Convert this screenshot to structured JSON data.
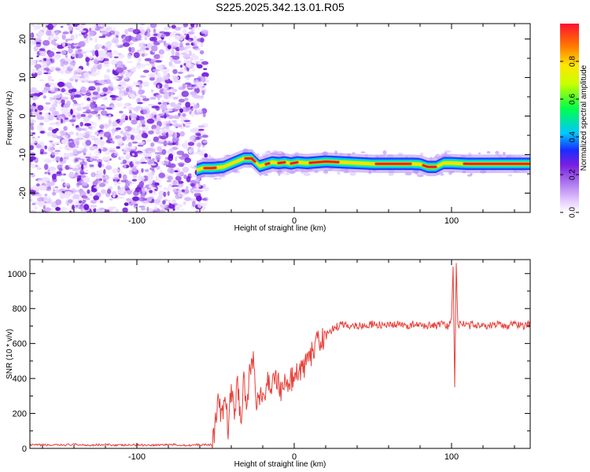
{
  "title": "S225.2025.342.13.01.R05",
  "colors": {
    "snr_line": "#e8403a",
    "noise_dots": "#8a2be2",
    "frame": "#000000"
  },
  "chart_data": [
    {
      "type": "heatmap",
      "name": "spectrogram",
      "xlabel": "Height of straight line (km)",
      "ylabel": "Frequency (Hz)",
      "xlim": [
        -168,
        150
      ],
      "ylim": [
        -25,
        24
      ],
      "x_ticks": [
        -100,
        0,
        100
      ],
      "y_ticks": [
        -20,
        -10,
        0,
        10,
        20
      ],
      "noise_region_x": [
        -168,
        -58
      ],
      "signal_ridge": {
        "x": [
          -62,
          -58,
          -52,
          -45,
          -38,
          -32,
          -27,
          -22,
          -18,
          -14,
          -10,
          -6,
          -2,
          2,
          8,
          14,
          20,
          30,
          40,
          50,
          60,
          70,
          75,
          80,
          85,
          90,
          95,
          100,
          110,
          120,
          130,
          140,
          150
        ],
        "freq": [
          -14,
          -13.5,
          -13.5,
          -13.2,
          -12,
          -11,
          -11,
          -13,
          -12.5,
          -12,
          -12.2,
          -12,
          -12.3,
          -12,
          -12.2,
          -12,
          -11.8,
          -12,
          -12.2,
          -12.4,
          -12.4,
          -12.4,
          -12.4,
          -12.5,
          -13.2,
          -13.2,
          -12.2,
          -12.2,
          -12.4,
          -12.4,
          -12.4,
          -12.4,
          -12.4
        ],
        "core_intervals": [
          [
            -57,
            -50
          ],
          [
            -31,
            -25
          ],
          [
            -18,
            -16
          ],
          [
            -10,
            -6
          ],
          [
            -2,
            2
          ],
          [
            10,
            28
          ],
          [
            52,
            74
          ],
          [
            82,
            90
          ],
          [
            108,
            150
          ]
        ]
      },
      "colorbar": {
        "label": "Normalized spectral amplitude",
        "range": [
          0,
          1
        ],
        "ticks": [
          0.0,
          0.2,
          0.4,
          0.6,
          0.8
        ]
      }
    },
    {
      "type": "line",
      "name": "snr",
      "xlabel": "Height of straight line (km)",
      "ylabel": "SNR (10 * v/v)",
      "xlim": [
        -168,
        150
      ],
      "ylim": [
        0,
        1080
      ],
      "x_ticks": [
        -100,
        0,
        100
      ],
      "y_ticks": [
        0,
        200,
        400,
        600,
        800,
        1000
      ],
      "series": [
        {
          "x": [
            -168,
            -160,
            -150,
            -140,
            -130,
            -120,
            -110,
            -100,
            -90,
            -80,
            -70,
            -60,
            -52,
            -48,
            -46,
            -44,
            -42,
            -40,
            -38,
            -36,
            -34,
            -32,
            -30,
            -28,
            -26,
            -24,
            -22,
            -20,
            -18,
            -16,
            -14,
            -12,
            -10,
            -8,
            -6,
            -4,
            -2,
            0,
            2,
            4,
            6,
            8,
            10,
            12,
            14,
            16,
            18,
            20,
            24,
            28,
            32,
            36,
            40,
            45,
            50,
            55,
            60,
            65,
            70,
            75,
            80,
            85,
            90,
            95,
            98,
            100,
            101,
            102,
            103,
            104,
            106,
            110,
            115,
            120,
            125,
            130,
            135,
            140,
            145,
            150
          ],
          "values": [
            18,
            20,
            18,
            22,
            19,
            21,
            18,
            20,
            19,
            22,
            18,
            20,
            22,
            280,
            160,
            300,
            120,
            340,
            200,
            380,
            150,
            410,
            230,
            460,
            520,
            280,
            300,
            260,
            330,
            400,
            350,
            420,
            380,
            330,
            370,
            360,
            400,
            390,
            440,
            430,
            470,
            480,
            520,
            560,
            600,
            610,
            620,
            640,
            680,
            700,
            710,
            700,
            705,
            700,
            710,
            705,
            700,
            710,
            700,
            710,
            700,
            705,
            700,
            710,
            690,
            760,
            1040,
            350,
            1060,
            700,
            720,
            700,
            710,
            705,
            700,
            710,
            700,
            715,
            700,
            710
          ]
        }
      ]
    }
  ]
}
